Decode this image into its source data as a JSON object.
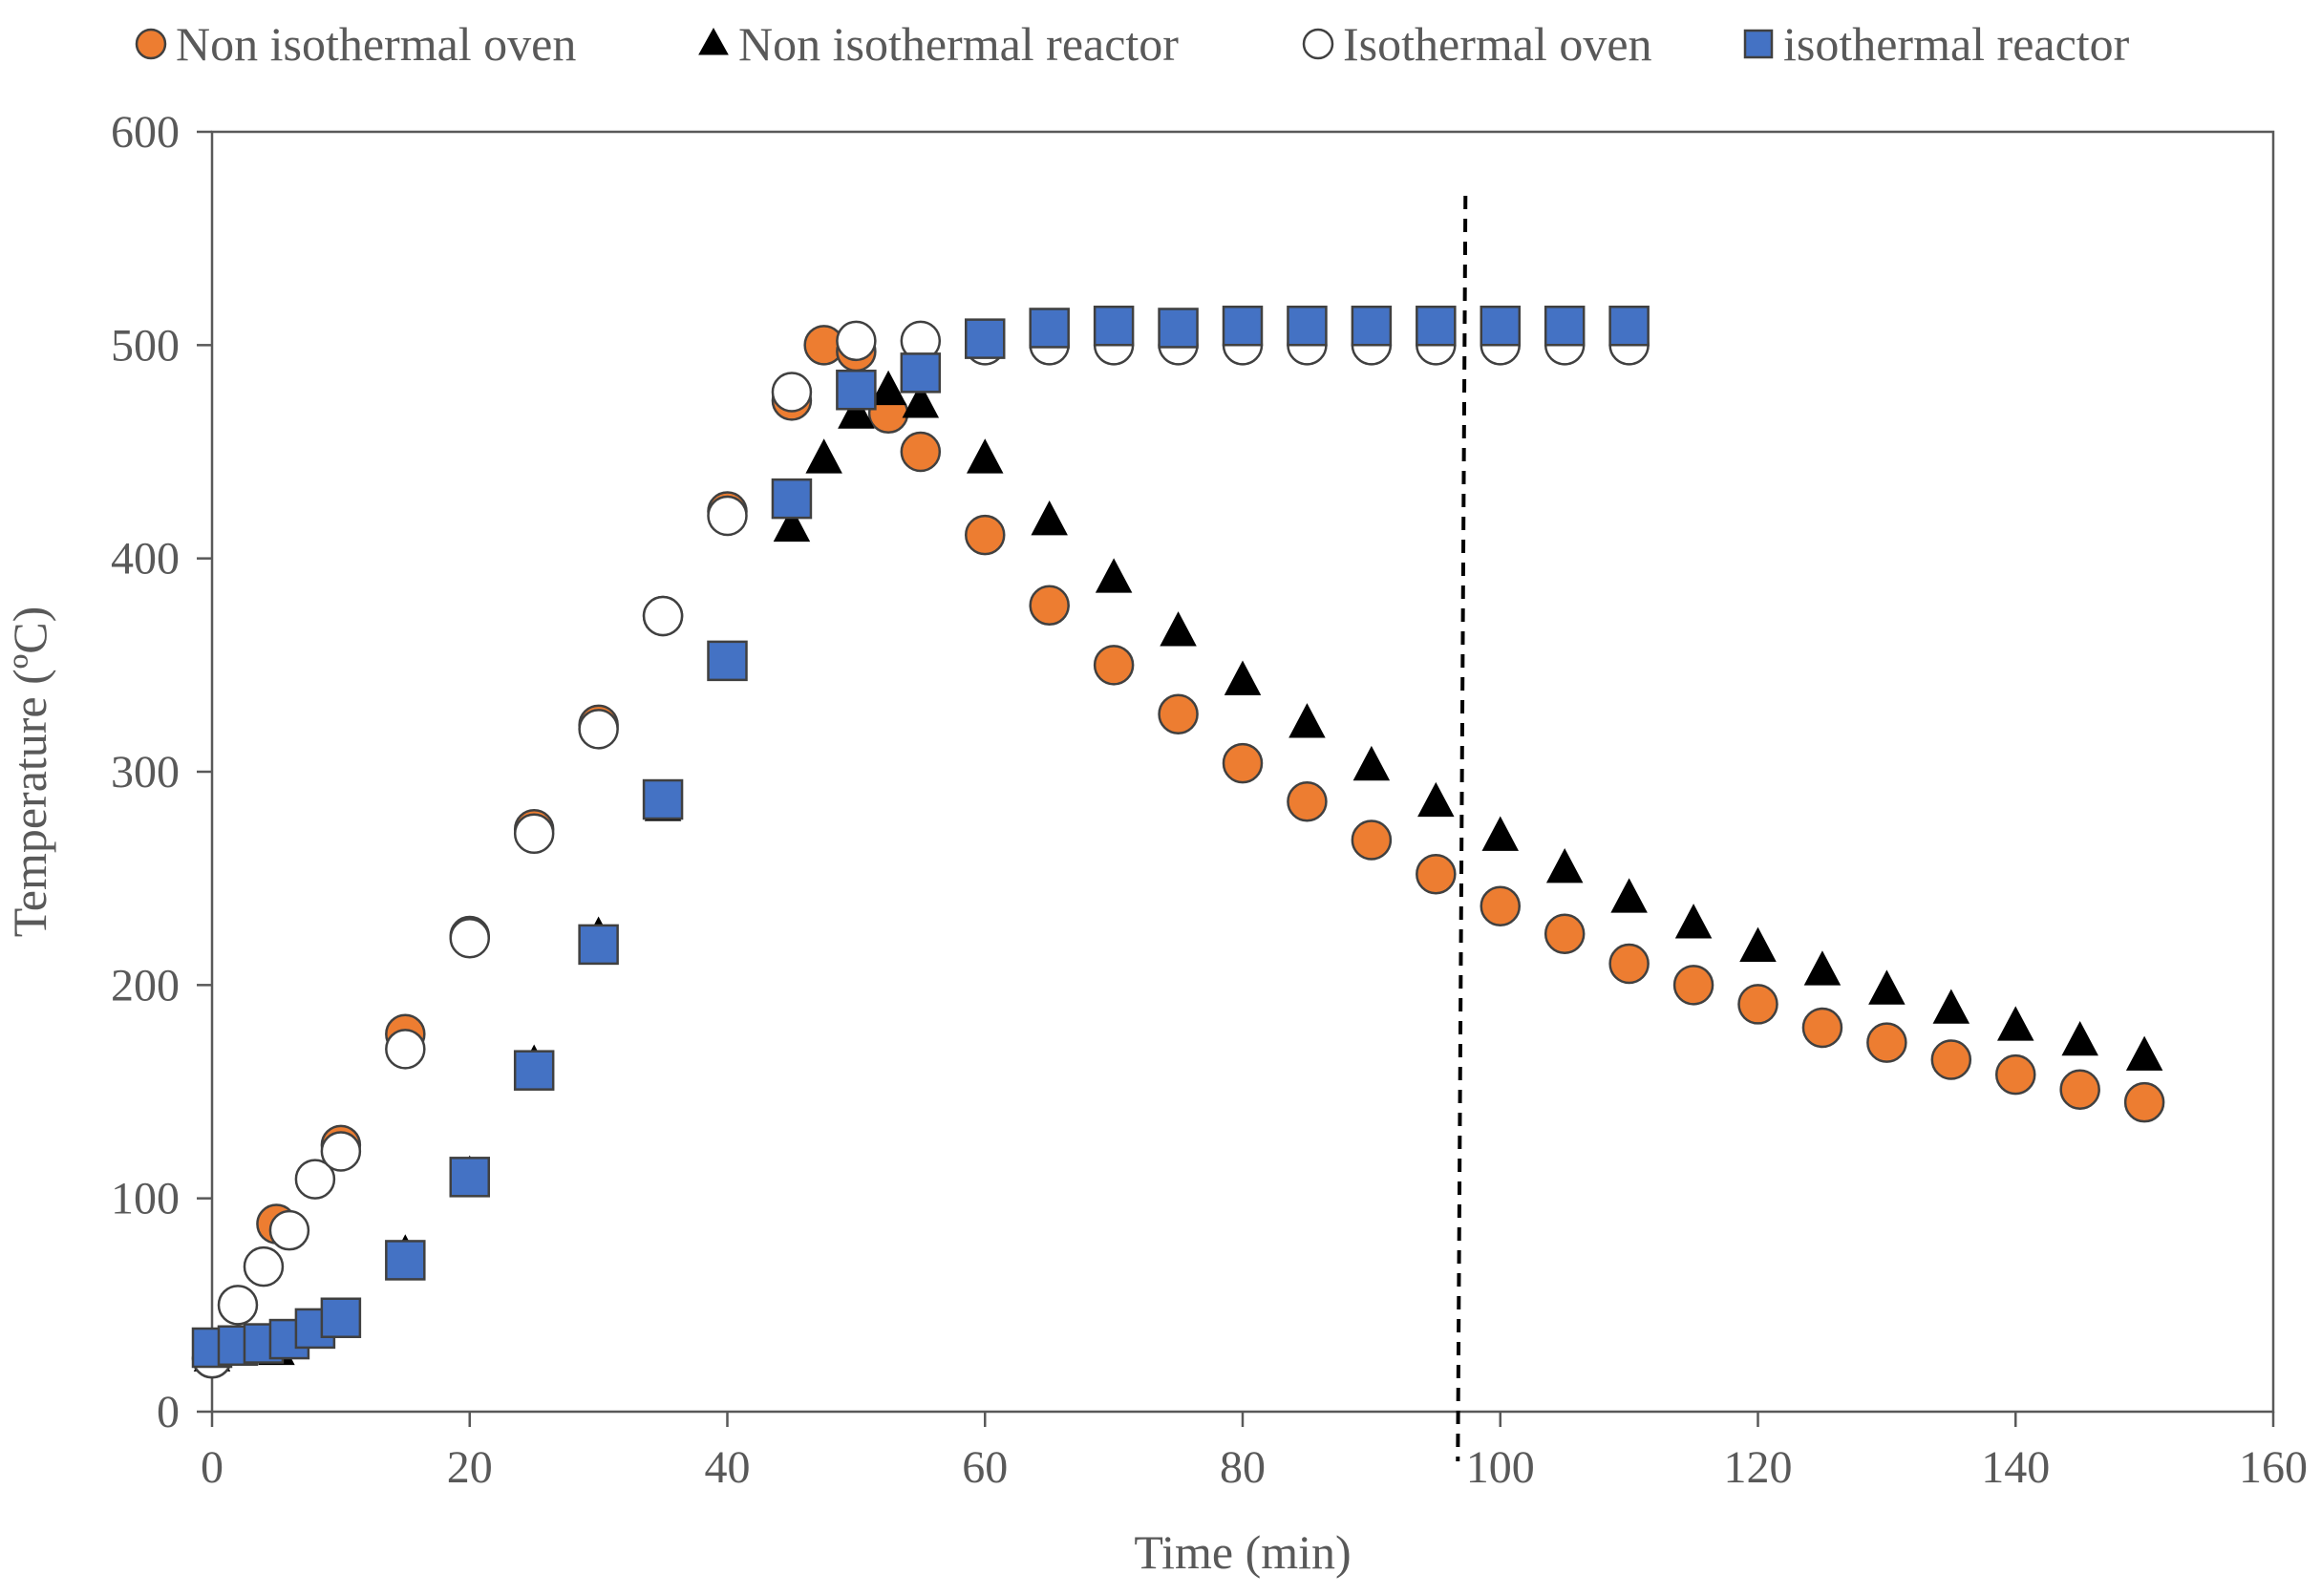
{
  "chart_data": {
    "type": "scatter",
    "title": "",
    "xlabel": "Time (min)",
    "ylabel": "Temperature (ºC)",
    "xlim": [
      0,
      160
    ],
    "ylim": [
      0,
      600
    ],
    "xticks": [
      0,
      20,
      40,
      60,
      80,
      100,
      120,
      140,
      160
    ],
    "yticks": [
      0,
      100,
      200,
      300,
      400,
      500,
      600
    ],
    "grid": false,
    "legend_position": "top",
    "reference_line": {
      "type": "vertical",
      "style": "dashed",
      "x": 97
    },
    "colors": {
      "orange": "#ED7D31",
      "blue": "#4472C4",
      "black": "#000000",
      "white": "#FFFFFF",
      "axis": "#595959"
    },
    "series": [
      {
        "name": "Non isothermal oven",
        "marker": "circle",
        "fill": "#ED7D31",
        "stroke": "#404040",
        "points": [
          [
            0,
            25
          ],
          [
            5,
            88
          ],
          [
            10,
            125
          ],
          [
            15,
            177
          ],
          [
            20,
            223
          ],
          [
            25,
            273
          ],
          [
            30,
            322
          ],
          [
            35,
            373
          ],
          [
            40,
            422
          ],
          [
            45,
            474
          ],
          [
            47.5,
            500
          ],
          [
            50,
            497
          ],
          [
            52.5,
            468
          ],
          [
            55,
            450
          ],
          [
            60,
            411
          ],
          [
            65,
            378
          ],
          [
            70,
            350
          ],
          [
            75,
            327
          ],
          [
            80,
            304
          ],
          [
            85,
            286
          ],
          [
            90,
            268
          ],
          [
            95,
            252
          ],
          [
            100,
            237
          ],
          [
            105,
            224
          ],
          [
            110,
            210
          ],
          [
            115,
            200
          ],
          [
            120,
            191
          ],
          [
            125,
            180
          ],
          [
            130,
            173
          ],
          [
            135,
            165
          ],
          [
            140,
            158
          ],
          [
            145,
            151
          ],
          [
            150,
            145
          ]
        ]
      },
      {
        "name": "Non isothermal reactor",
        "marker": "triangle",
        "fill": "#000000",
        "stroke": "#000000",
        "points": [
          [
            0,
            25
          ],
          [
            5,
            28
          ],
          [
            10,
            42
          ],
          [
            15,
            73
          ],
          [
            20,
            110
          ],
          [
            25,
            162
          ],
          [
            30,
            222
          ],
          [
            35,
            283
          ],
          [
            40,
            349
          ],
          [
            45,
            414
          ],
          [
            47.5,
            446
          ],
          [
            50,
            467
          ],
          [
            52.5,
            478
          ],
          [
            55,
            472
          ],
          [
            60,
            446
          ],
          [
            65,
            417
          ],
          [
            70,
            390
          ],
          [
            75,
            365
          ],
          [
            80,
            342
          ],
          [
            85,
            322
          ],
          [
            90,
            302
          ],
          [
            95,
            285
          ],
          [
            100,
            269
          ],
          [
            105,
            254
          ],
          [
            110,
            240
          ],
          [
            115,
            228
          ],
          [
            120,
            217
          ],
          [
            125,
            206
          ],
          [
            130,
            197
          ],
          [
            135,
            188
          ],
          [
            140,
            180
          ],
          [
            145,
            173
          ],
          [
            150,
            166
          ]
        ]
      },
      {
        "name": "Isothermal oven",
        "marker": "circle",
        "fill": "#FFFFFF",
        "stroke": "#404040",
        "points": [
          [
            0,
            25
          ],
          [
            2,
            50
          ],
          [
            4,
            68
          ],
          [
            6,
            85
          ],
          [
            8,
            109
          ],
          [
            10,
            122
          ],
          [
            15,
            170
          ],
          [
            20,
            222
          ],
          [
            25,
            271
          ],
          [
            30,
            320
          ],
          [
            35,
            373
          ],
          [
            40,
            420
          ],
          [
            45,
            478
          ],
          [
            50,
            502
          ],
          [
            55,
            502
          ],
          [
            60,
            500
          ],
          [
            65,
            500
          ],
          [
            70,
            500
          ],
          [
            75,
            500
          ],
          [
            80,
            500
          ],
          [
            85,
            500
          ],
          [
            90,
            500
          ],
          [
            95,
            500
          ],
          [
            100,
            500
          ],
          [
            105,
            500
          ],
          [
            110,
            500
          ]
        ]
      },
      {
        "name": "isothermal reactor",
        "marker": "square",
        "fill": "#4472C4",
        "stroke": "#404040",
        "points": [
          [
            0,
            30
          ],
          [
            2,
            31
          ],
          [
            4,
            32
          ],
          [
            6,
            34
          ],
          [
            8,
            39
          ],
          [
            10,
            44
          ],
          [
            15,
            71
          ],
          [
            20,
            110
          ],
          [
            25,
            160
          ],
          [
            30,
            219
          ],
          [
            35,
            287
          ],
          [
            40,
            352
          ],
          [
            45,
            428
          ],
          [
            50,
            479
          ],
          [
            55,
            487
          ],
          [
            60,
            503
          ],
          [
            65,
            508
          ],
          [
            70,
            509
          ],
          [
            75,
            508
          ],
          [
            80,
            509
          ],
          [
            85,
            509
          ],
          [
            90,
            509
          ],
          [
            95,
            509
          ],
          [
            100,
            509
          ],
          [
            105,
            509
          ],
          [
            110,
            509
          ]
        ]
      }
    ]
  }
}
